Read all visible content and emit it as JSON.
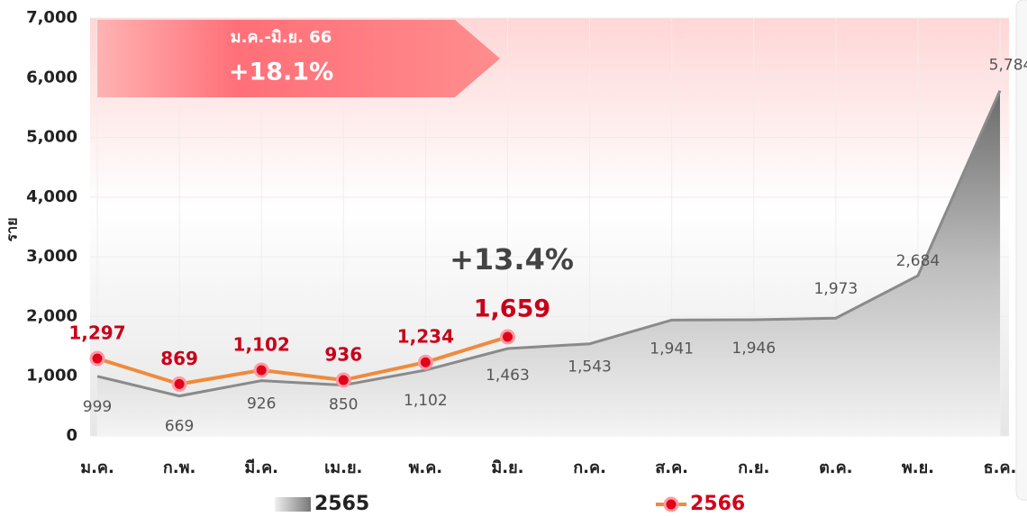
{
  "chart_data": {
    "type": "line",
    "y_label": "ราย",
    "categories": [
      "ม.ค.",
      "ก.พ.",
      "มี.ค.",
      "เม.ย.",
      "พ.ค.",
      "มิ.ย.",
      "ก.ค.",
      "ส.ค.",
      "ก.ย.",
      "ต.ค.",
      "พ.ย.",
      "ธ.ค."
    ],
    "series": [
      {
        "name": "2565",
        "color": "#8a8a8a",
        "fill": "area",
        "values": [
          999,
          669,
          926,
          850,
          1102,
          1463,
          1543,
          1941,
          1946,
          1973,
          2684,
          5784
        ],
        "value_labels": [
          "999",
          "669",
          "926",
          "850",
          "1,102",
          "1,463",
          "1,543",
          "1,941",
          "1,946",
          "1,973",
          "2,684",
          "5,784"
        ]
      },
      {
        "name": "2566",
        "color": "#f08a3c",
        "marker_color": "#e3001b",
        "values": [
          1297,
          869,
          1102,
          936,
          1234,
          1659,
          null,
          null,
          null,
          null,
          null,
          null
        ],
        "value_labels": [
          "1,297",
          "869",
          "1,102",
          "936",
          "1,234",
          "1,659",
          null,
          null,
          null,
          null,
          null,
          null
        ]
      }
    ],
    "ylim": [
      0,
      7000
    ],
    "yticks": [
      0,
      {
        "value": 1000,
        "label": "1,000"
      },
      {
        "value": 2000,
        "label": "2,000"
      },
      {
        "value": 3000,
        "label": "3,000"
      },
      {
        "value": 4000,
        "label": "4,000"
      },
      {
        "value": 5000,
        "label": "5,000"
      },
      {
        "value": 6000,
        "label": "6,000"
      },
      {
        "value": 7000,
        "label": "7,000"
      }
    ],
    "grid": true,
    "annotations": [
      "ม.ค.-มิ.ย. 66",
      "+18.1%",
      "+13.4%"
    ]
  }
}
